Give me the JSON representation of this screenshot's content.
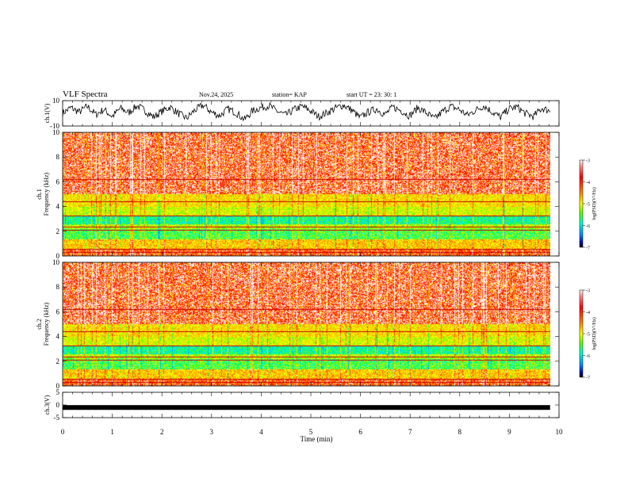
{
  "header": {
    "title": "VLF Spectra",
    "date": "Nov.24, 2025",
    "station": "station= KAP",
    "start": "start  UT =   23: 30: 1"
  },
  "chart_data": [
    {
      "type": "line",
      "title": "",
      "ylabel": "ch.1(V)",
      "ylim": [
        -10,
        10
      ],
      "yticks": [
        "10",
        "-10"
      ],
      "xlim": [
        0,
        10
      ],
      "series": [
        {
          "values": [
            0.2,
            4.5,
            1.0,
            5.5,
            -1.0,
            3.0,
            -2.5,
            4.0,
            0.5,
            6.0,
            2.0,
            -3.0,
            1.5,
            5.0,
            0.0,
            -4.0,
            2.5,
            6.5,
            1.0,
            -2.0,
            3.5,
            0.5,
            -5.0,
            2.0,
            4.5,
            6.0,
            1.5,
            -1.5,
            3.0,
            5.5,
            2.0,
            -2.5,
            0.5,
            4.0,
            6.5,
            2.5,
            -3.5,
            1.0,
            3.5,
            -1.0,
            5.0,
            2.0,
            -2.0,
            4.5,
            0.5,
            -4.5,
            1.5,
            5.5,
            3.0,
            -1.5,
            2.5,
            6.0,
            1.0,
            -3.0,
            3.5,
            5.0,
            0.0,
            -2.5,
            4.0,
            2.0
          ]
        }
      ]
    },
    {
      "type": "heatmap",
      "title": "",
      "ylabel": "ch.1\nFrequency (kHz)",
      "ylim": [
        0,
        10
      ],
      "yticks": [
        "0",
        "2",
        "4",
        "6",
        "8",
        "10"
      ],
      "xlim": [
        0,
        10
      ],
      "colorbar": {
        "label": "log(PSD)(V²/Hz)",
        "range": [
          -7,
          -3
        ],
        "ticks": [
          "-3",
          "-4",
          "-5",
          "-6",
          "-7"
        ]
      }
    },
    {
      "type": "heatmap",
      "title": "",
      "ylabel": "ch.2\nFrequency (kHz)",
      "ylim": [
        0,
        10
      ],
      "yticks": [
        "0",
        "2",
        "4",
        "6",
        "8",
        "10"
      ],
      "xlim": [
        0,
        10
      ],
      "colorbar": {
        "label": "log(PSD)(V²/Hz)",
        "range": [
          -7,
          -3
        ],
        "ticks": [
          "-3",
          "-4",
          "-5",
          "-6",
          "-7"
        ]
      }
    },
    {
      "type": "line",
      "title": "",
      "ylabel": "ch.3(V)",
      "ylim": [
        -5,
        5
      ],
      "yticks": [
        "5",
        "0",
        "-5"
      ],
      "xlim": [
        0,
        10
      ],
      "xlabel": "Time  (min)",
      "xticks": [
        "0",
        "1",
        "2",
        "3",
        "4",
        "5",
        "6",
        "7",
        "8",
        "9",
        "10"
      ],
      "series": [
        {
          "values": [
            -1.0,
            -1.0
          ]
        }
      ]
    }
  ]
}
